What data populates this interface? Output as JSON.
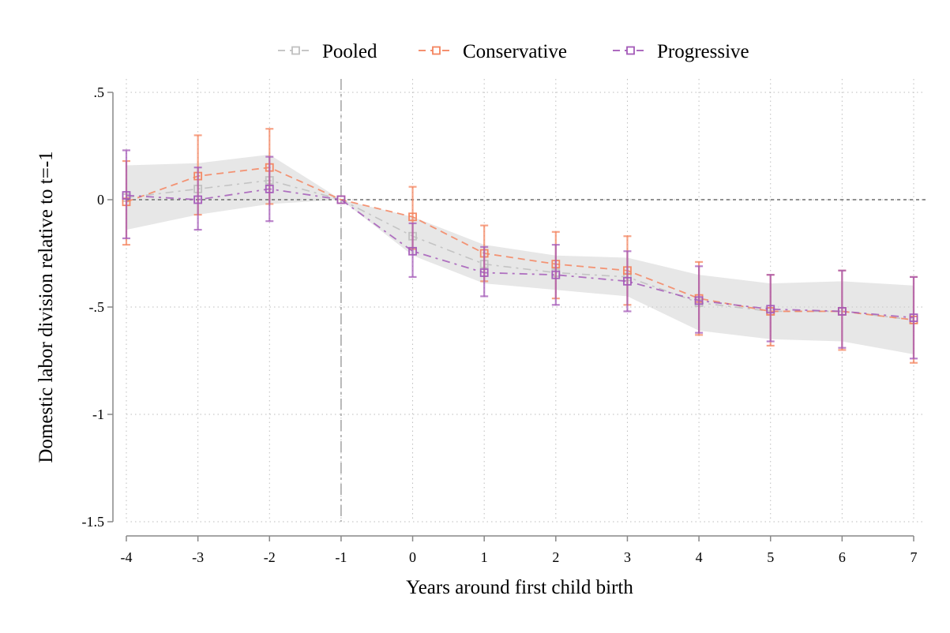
{
  "chart_data": {
    "type": "line",
    "xlabel": "Years around first child birth",
    "ylabel": "Domestic labor division relative to t=-1",
    "x": [
      -4,
      -3,
      -2,
      -1,
      0,
      1,
      2,
      3,
      4,
      5,
      6,
      7
    ],
    "x_tick_labels": [
      "-4",
      "-3",
      "-2",
      "-1",
      "0",
      "1",
      "2",
      "3",
      "4",
      "5",
      "6",
      "7"
    ],
    "y_ticks": [
      0.5,
      0,
      -0.5,
      -1,
      -1.5
    ],
    "y_tick_labels": [
      ".5",
      "0",
      "-.5",
      "-1",
      "-1.5"
    ],
    "xlim": [
      -4,
      7
    ],
    "ylim": [
      -1.5,
      0.5
    ],
    "grid": true,
    "legend_position": "top",
    "reference_lines": {
      "horizontal_y": 0,
      "vertical_x": -1
    },
    "series": [
      {
        "name": "Pooled",
        "color": "#c0c0c0",
        "values": [
          0.01,
          0.05,
          0.09,
          0.0,
          -0.17,
          -0.3,
          -0.34,
          -0.36,
          -0.48,
          -0.52,
          -0.52,
          -0.56
        ],
        "ci_lower": [
          -0.14,
          -0.07,
          -0.02,
          0.0,
          -0.26,
          -0.39,
          -0.42,
          -0.45,
          -0.61,
          -0.65,
          -0.66,
          -0.72
        ],
        "ci_upper": [
          0.16,
          0.17,
          0.21,
          0.0,
          -0.08,
          -0.21,
          -0.26,
          -0.27,
          -0.35,
          -0.39,
          -0.38,
          -0.4
        ]
      },
      {
        "name": "Conservative",
        "color": "#f4845f",
        "values": [
          -0.01,
          0.11,
          0.15,
          0.0,
          -0.08,
          -0.25,
          -0.3,
          -0.33,
          -0.46,
          -0.52,
          -0.52,
          -0.56
        ],
        "ci_lower": [
          -0.21,
          -0.07,
          -0.02,
          0.0,
          -0.23,
          -0.38,
          -0.46,
          -0.49,
          -0.63,
          -0.68,
          -0.7,
          -0.76
        ],
        "ci_upper": [
          0.18,
          0.3,
          0.33,
          0.0,
          0.06,
          -0.12,
          -0.15,
          -0.17,
          -0.29,
          -0.35,
          -0.33,
          -0.36
        ]
      },
      {
        "name": "Progressive",
        "color": "#a45ab8",
        "values": [
          0.02,
          0.0,
          0.05,
          0.0,
          -0.24,
          -0.34,
          -0.35,
          -0.38,
          -0.47,
          -0.51,
          -0.52,
          -0.55
        ],
        "ci_lower": [
          -0.18,
          -0.14,
          -0.1,
          0.0,
          -0.36,
          -0.45,
          -0.49,
          -0.52,
          -0.62,
          -0.66,
          -0.69,
          -0.74
        ],
        "ci_upper": [
          0.23,
          0.15,
          0.2,
          0.0,
          -0.11,
          -0.22,
          -0.21,
          -0.24,
          -0.31,
          -0.35,
          -0.33,
          -0.36
        ]
      }
    ]
  }
}
